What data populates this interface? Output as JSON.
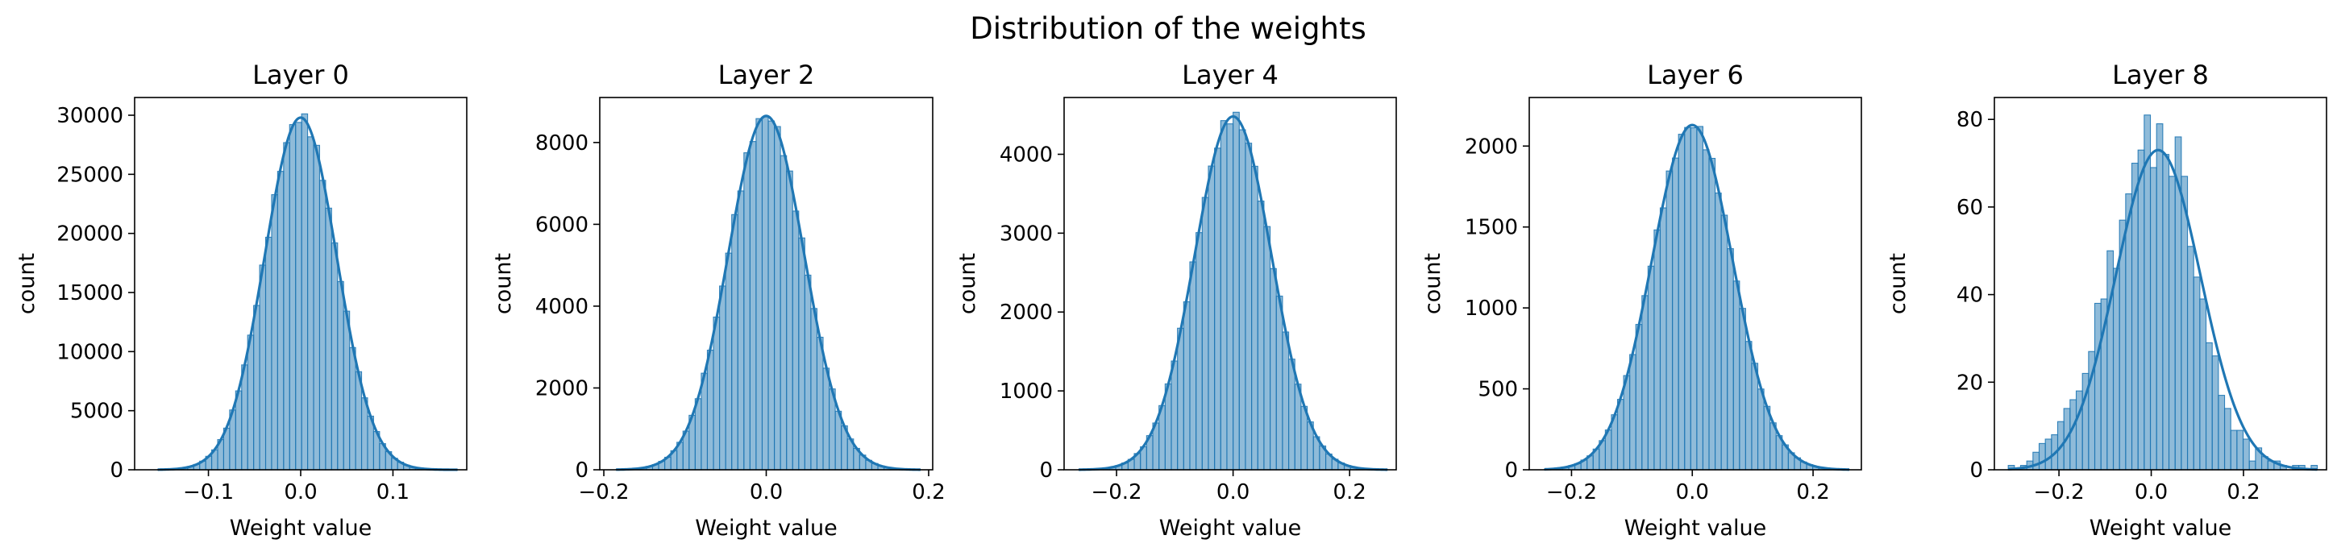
{
  "figure": {
    "title": "Distribution of the weights"
  },
  "colors": {
    "bar_fill": "#1f77b4",
    "bar_edge": "#1f77b4",
    "kde": "#1f77b4",
    "axes": "#000000"
  },
  "chart_data": [
    {
      "type": "histogram",
      "title": "Layer 0",
      "xlabel": "Weight value",
      "ylabel": "count",
      "xlim": [
        -0.18,
        0.18
      ],
      "ylim": [
        0,
        31500
      ],
      "xticks": [
        -0.1,
        0.0,
        0.1
      ],
      "xtick_labels": [
        "−0.1",
        "0.0",
        "0.1"
      ],
      "yticks": [
        0,
        5000,
        10000,
        15000,
        20000,
        25000,
        30000
      ],
      "ytick_labels": [
        "0",
        "5000",
        "10000",
        "15000",
        "20000",
        "25000",
        "30000"
      ],
      "bin_range": [
        -0.155,
        0.17
      ],
      "bins": 50,
      "sigma": 0.039,
      "mean": 0.0,
      "peak": 29800,
      "kde": true
    },
    {
      "type": "histogram",
      "title": "Layer 2",
      "xlabel": "Weight value",
      "ylabel": "count",
      "xlim": [
        -0.205,
        0.205
      ],
      "ylim": [
        0,
        9100
      ],
      "xticks": [
        -0.2,
        0.0,
        0.2
      ],
      "xtick_labels": [
        "−0.2",
        "0.0",
        "0.2"
      ],
      "yticks": [
        0,
        2000,
        4000,
        6000,
        8000
      ],
      "ytick_labels": [
        "0",
        "2000",
        "4000",
        "6000",
        "8000"
      ],
      "bin_range": [
        -0.185,
        0.19
      ],
      "bins": 50,
      "sigma": 0.047,
      "mean": 0.0,
      "peak": 8650,
      "kde": true
    },
    {
      "type": "histogram",
      "title": "Layer 4",
      "xlabel": "Weight value",
      "ylabel": "count",
      "xlim": [
        -0.29,
        0.28
      ],
      "ylim": [
        0,
        4720
      ],
      "xticks": [
        -0.2,
        0.0,
        0.2
      ],
      "xtick_labels": [
        "−0.2",
        "0.0",
        "0.2"
      ],
      "yticks": [
        0,
        1000,
        2000,
        3000,
        4000
      ],
      "ytick_labels": [
        "0",
        "1000",
        "2000",
        "3000",
        "4000"
      ],
      "bin_range": [
        -0.265,
        0.265
      ],
      "bins": 50,
      "sigma": 0.066,
      "mean": 0.0,
      "peak": 4480,
      "kde": true
    },
    {
      "type": "histogram",
      "title": "Layer 6",
      "xlabel": "Weight value",
      "ylabel": "count",
      "xlim": [
        -0.27,
        0.28
      ],
      "ylim": [
        0,
        2300
      ],
      "xticks": [
        -0.2,
        0.0,
        0.2
      ],
      "xtick_labels": [
        "−0.2",
        "0.0",
        "0.2"
      ],
      "yticks": [
        0,
        500,
        1000,
        1500,
        2000
      ],
      "ytick_labels": [
        "0",
        "500",
        "1000",
        "1500",
        "2000"
      ],
      "bin_range": [
        -0.245,
        0.26
      ],
      "bins": 50,
      "sigma": 0.067,
      "mean": 0.0,
      "peak": 2130,
      "kde": true
    },
    {
      "type": "histogram",
      "title": "Layer 8",
      "xlabel": "Weight value",
      "ylabel": "count",
      "xlim": [
        -0.34,
        0.38
      ],
      "ylim": [
        0,
        85
      ],
      "xticks": [
        -0.2,
        0.0,
        0.2
      ],
      "xtick_labels": [
        "−0.2",
        "0.0",
        "0.2"
      ],
      "yticks": [
        0,
        20,
        40,
        60,
        80
      ],
      "ytick_labels": [
        "0",
        "20",
        "40",
        "60",
        "80"
      ],
      "bin_range": [
        -0.31,
        0.36
      ],
      "bins": 50,
      "bin_counts": [
        1,
        0,
        1,
        2,
        4,
        6,
        7,
        8,
        11,
        14,
        16,
        18,
        22,
        27,
        38,
        39,
        50,
        46,
        57,
        63,
        70,
        73,
        81,
        69,
        79,
        72,
        67,
        76,
        67,
        51,
        44,
        39,
        29,
        26,
        17,
        14,
        9,
        9,
        7,
        2,
        5,
        3,
        2,
        2,
        1,
        0,
        1,
        1,
        0,
        1
      ],
      "kde_mean": 0.015,
      "kde_sigma": 0.092,
      "kde_peak": 73,
      "kde": true
    }
  ]
}
